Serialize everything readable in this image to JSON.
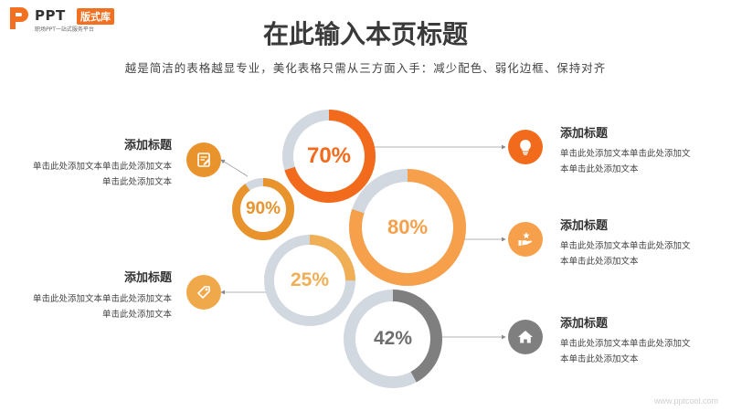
{
  "logo": {
    "brand": "PPT",
    "badge": "版式库",
    "tagline": "职场PPT一站式服务平台"
  },
  "header": {
    "title": "在此输入本页标题",
    "subtitle": "越是简洁的表格越显专业，美化表格只需从三方面入手：减少配色、弱化边框、保持对齐"
  },
  "colors": {
    "orange_dark": "#f26b1d",
    "orange_mid": "#e8932c",
    "orange_light": "#f6a13f",
    "orange_pale": "#f0a94a",
    "gray_dark": "#7f7f7f",
    "ring_track": "#d2d8e0"
  },
  "rings": [
    {
      "value_label": "70%",
      "percent": 70,
      "color": "#f26b1d"
    },
    {
      "value_label": "90%",
      "percent": 90,
      "color": "#e8932c"
    },
    {
      "value_label": "80%",
      "percent": 80,
      "color": "#f6a04c"
    },
    {
      "value_label": "25%",
      "percent": 25,
      "color": "#f0ae55"
    },
    {
      "value_label": "42%",
      "percent": 42,
      "color": "#7f7f7f"
    }
  ],
  "items": [
    {
      "title": "添加标题",
      "body": "单击此处添加文本单击此处添加文本单击此处添加文本",
      "icon": "note-icon"
    },
    {
      "title": "添加标题",
      "body": "单击此处添加文本单击此处添加文本单击此处添加文本",
      "icon": "tag-icon"
    },
    {
      "title": "添加标题",
      "body": "单击此处添加文本单击此处添加文本单击此处添加文本",
      "icon": "lightbulb-icon"
    },
    {
      "title": "添加标题",
      "body": "单击此处添加文本单击此处添加文本单击此处添加文本",
      "icon": "hand-star-icon"
    },
    {
      "title": "添加标题",
      "body": "单击此处添加文本单击此处添加文本单击此处添加文本",
      "icon": "home-icon"
    }
  ],
  "watermark": "www.pptcool.com"
}
